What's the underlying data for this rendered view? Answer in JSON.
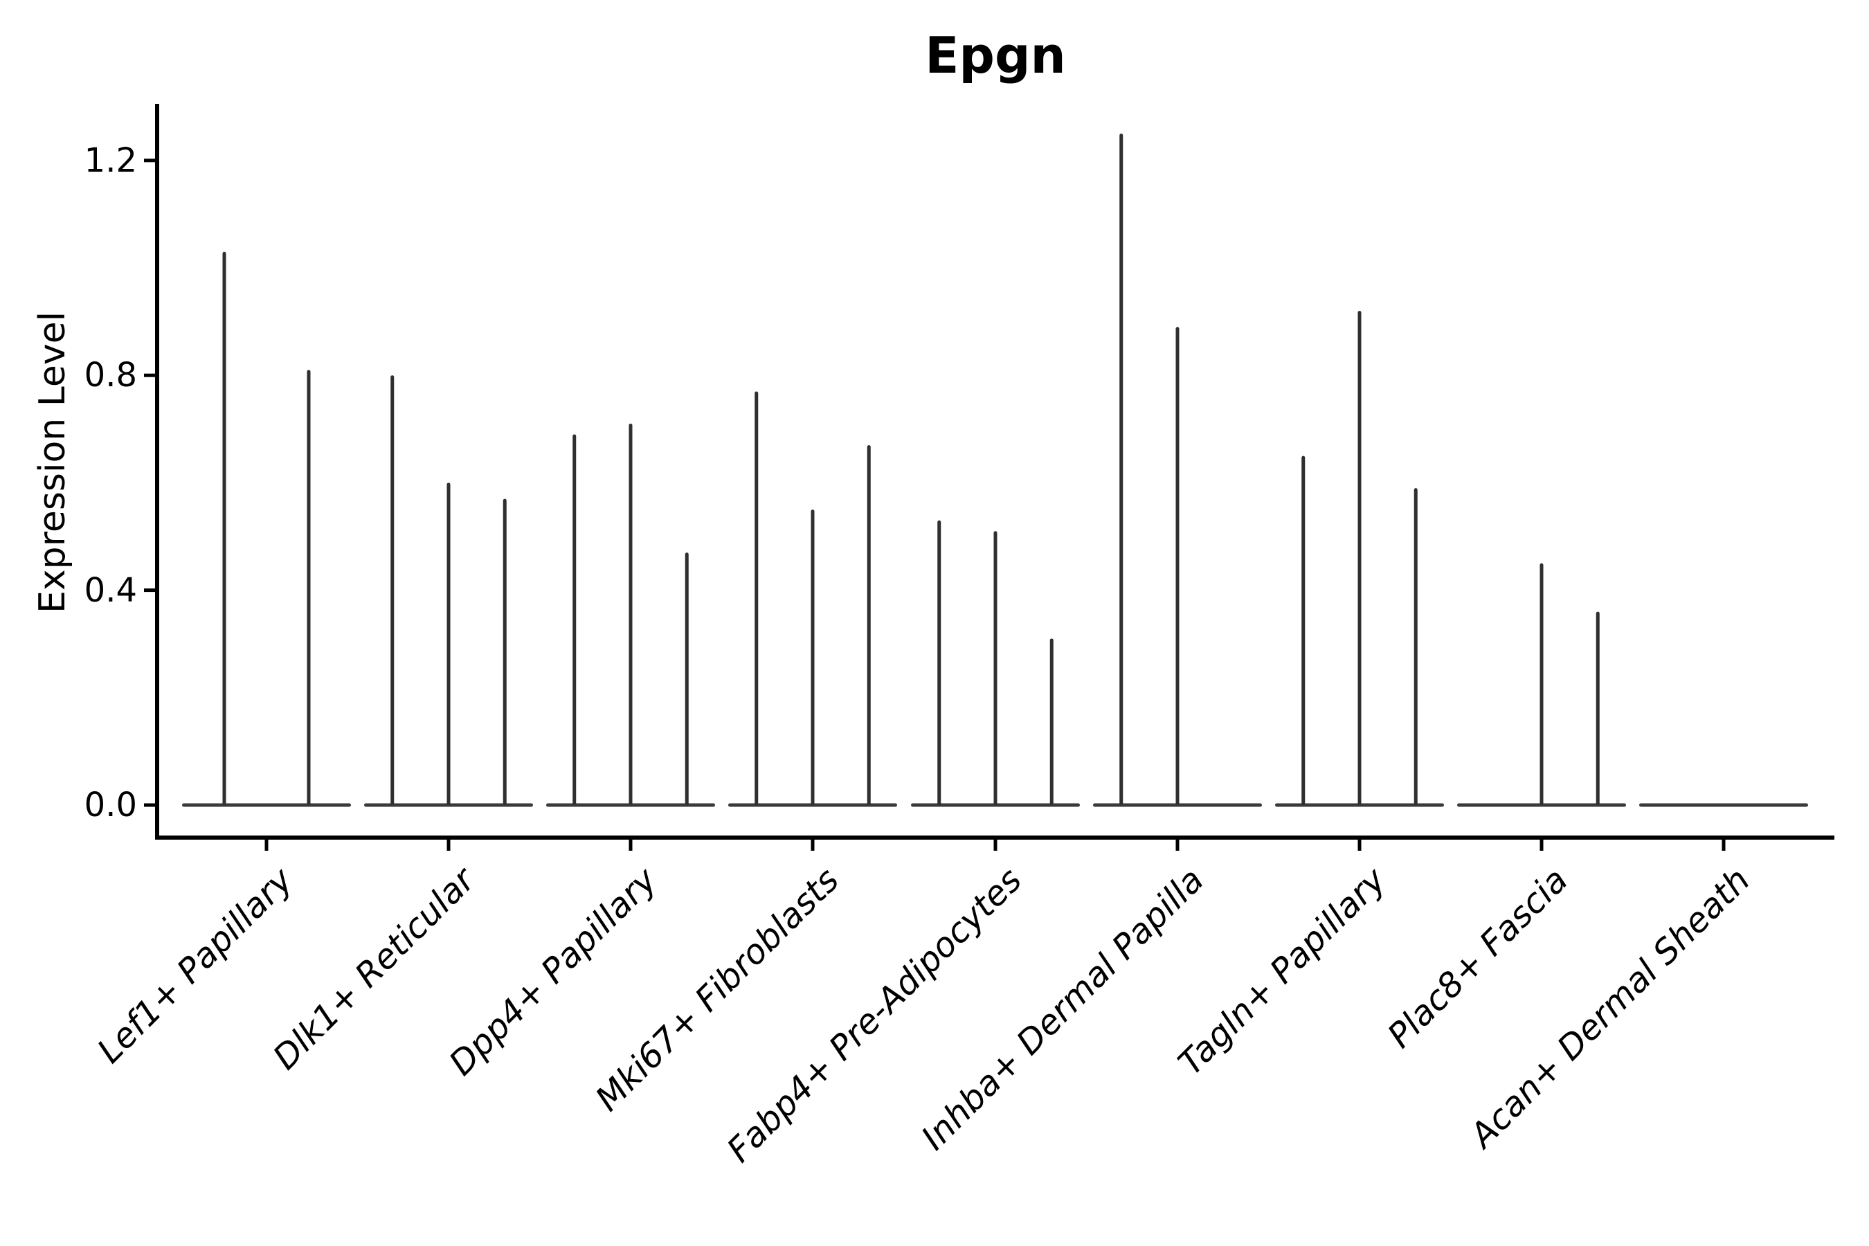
{
  "chart_data": {
    "type": "violin",
    "title": "Epgn",
    "xlabel": "",
    "ylabel": "Expression Level",
    "ylim": [
      0,
      1.3
    ],
    "grid": false,
    "legend": "none",
    "yticks": [
      {
        "value": 0.0,
        "label": "0.0"
      },
      {
        "value": 0.4,
        "label": "0.4"
      },
      {
        "value": 0.8,
        "label": "0.8"
      },
      {
        "value": 1.2,
        "label": "1.2"
      }
    ],
    "categories": [
      "Lef1+ Papillary",
      "Dlk1+ Reticular",
      "Dpp4+ Papillary",
      "Mki67+ Fibroblasts",
      "Fabp4+ Pre-Adipocytes",
      "Inhba+ Dermal Papilla",
      "Tagln+ Papillary",
      "Plac8+ Fascia",
      "Acan+ Dermal Sheath"
    ],
    "groups": [
      {
        "category": "Lef1+ Papillary",
        "violins": [
          {
            "pos": 0.25,
            "peak": 1.03
          },
          {
            "pos": 0.75,
            "peak": 0.81
          }
        ]
      },
      {
        "category": "Dlk1+ Reticular",
        "violins": [
          {
            "pos": 0.167,
            "peak": 0.8
          },
          {
            "pos": 0.5,
            "peak": 0.6
          },
          {
            "pos": 0.833,
            "peak": 0.57
          }
        ]
      },
      {
        "category": "Dpp4+ Papillary",
        "violins": [
          {
            "pos": 0.167,
            "peak": 0.69
          },
          {
            "pos": 0.5,
            "peak": 0.71
          },
          {
            "pos": 0.833,
            "peak": 0.47
          }
        ]
      },
      {
        "category": "Mki67+ Fibroblasts",
        "violins": [
          {
            "pos": 0.167,
            "peak": 0.77
          },
          {
            "pos": 0.5,
            "peak": 0.55
          },
          {
            "pos": 0.833,
            "peak": 0.67
          }
        ]
      },
      {
        "category": "Fabp4+ Pre-Adipocytes",
        "violins": [
          {
            "pos": 0.167,
            "peak": 0.53
          },
          {
            "pos": 0.5,
            "peak": 0.51
          },
          {
            "pos": 0.833,
            "peak": 0.31
          }
        ]
      },
      {
        "category": "Inhba+ Dermal Papilla",
        "violins": [
          {
            "pos": 0.167,
            "peak": 1.25
          },
          {
            "pos": 0.5,
            "peak": 0.89
          },
          {
            "pos": 0.833,
            "peak": 0.0
          }
        ]
      },
      {
        "category": "Tagln+ Papillary",
        "violins": [
          {
            "pos": 0.167,
            "peak": 0.65
          },
          {
            "pos": 0.5,
            "peak": 0.92
          },
          {
            "pos": 0.833,
            "peak": 0.59
          }
        ]
      },
      {
        "category": "Plac8+ Fascia",
        "violins": [
          {
            "pos": 0.167,
            "peak": 0.0
          },
          {
            "pos": 0.5,
            "peak": 0.45
          },
          {
            "pos": 0.833,
            "peak": 0.36
          }
        ]
      },
      {
        "category": "Acan+ Dermal Sheath",
        "violins": [
          {
            "pos": 0.167,
            "peak": 0.0
          },
          {
            "pos": 0.5,
            "peak": 0.0
          },
          {
            "pos": 0.833,
            "peak": 0.0
          }
        ]
      }
    ]
  },
  "colors": {
    "violin": "#2f2f2f",
    "violin_base": "#3a3a3a",
    "axis": "#000000",
    "text": "#000000",
    "background": "#ffffff"
  }
}
